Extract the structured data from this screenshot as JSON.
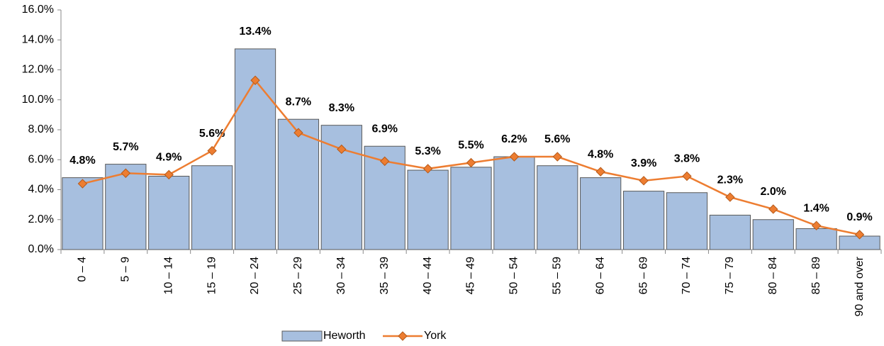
{
  "chart_data": {
    "type": "bar",
    "categories": [
      "0 – 4",
      "5 – 9",
      "10 – 14",
      "15 – 19",
      "20 – 24",
      "25 – 29",
      "30 – 34",
      "35 – 39",
      "40 – 44",
      "45 – 49",
      "50 – 54",
      "55 – 59",
      "60 – 64",
      "65 – 69",
      "70 – 74",
      "75 – 79",
      "80 – 84",
      "85 – 89",
      "90 and over"
    ],
    "series": [
      {
        "name": "Heworth",
        "type": "bar",
        "color": "#a7bfdf",
        "values": [
          4.8,
          5.7,
          4.9,
          5.6,
          13.4,
          8.7,
          8.3,
          6.9,
          5.3,
          5.5,
          6.2,
          5.6,
          4.8,
          3.9,
          3.8,
          2.3,
          2.0,
          1.4,
          0.9
        ],
        "value_labels": [
          "4.8%",
          "5.7%",
          "4.9%",
          "5.6%",
          "13.4%",
          "8.7%",
          "8.3%",
          "6.9%",
          "5.3%",
          "5.5%",
          "6.2%",
          "5.6%",
          "4.8%",
          "3.9%",
          "3.8%",
          "2.3%",
          "2.0%",
          "1.4%",
          "0.9%"
        ]
      },
      {
        "name": "York",
        "type": "line",
        "color": "#ed7d31",
        "values": [
          4.4,
          5.1,
          5.0,
          6.6,
          11.3,
          7.8,
          6.7,
          5.9,
          5.4,
          5.8,
          6.2,
          6.2,
          5.2,
          4.6,
          4.9,
          3.5,
          2.7,
          1.6,
          1.0
        ]
      }
    ],
    "ylim": [
      0,
      16
    ],
    "yticks": [
      {
        "value": 0,
        "label": "0.0%"
      },
      {
        "value": 2,
        "label": "2.0%"
      },
      {
        "value": 4,
        "label": "4.0%"
      },
      {
        "value": 6,
        "label": "6.0%"
      },
      {
        "value": 8,
        "label": "8.0%"
      },
      {
        "value": 10,
        "label": "10.0%"
      },
      {
        "value": 12,
        "label": "12.0%"
      },
      {
        "value": 14,
        "label": "14.0%"
      },
      {
        "value": 16,
        "label": "16.0%"
      }
    ],
    "grid": false,
    "legend": "bottom"
  }
}
